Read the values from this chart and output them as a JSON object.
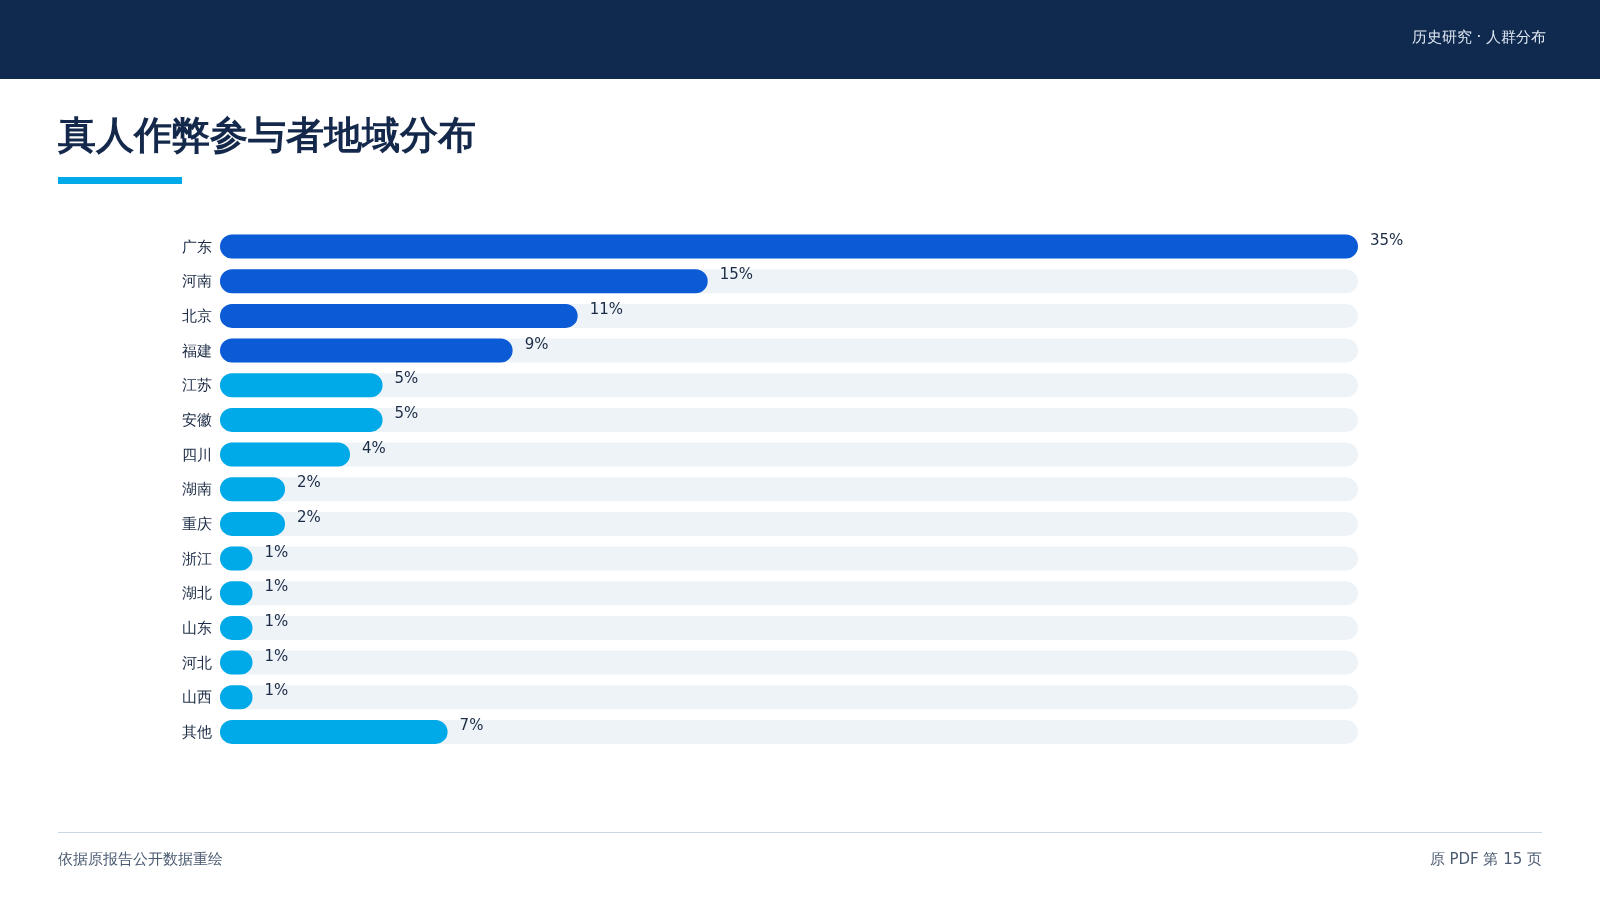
{
  "chart_data": {
    "type": "bar",
    "orientation": "horizontal",
    "title": "真人作弊参与者地域分布",
    "annotations": [
      "历史研究 · 人群分布",
      "依据原报告公开数据重绘",
      "原 PDF 第 15 页"
    ],
    "categories": [
      "广东",
      "河南",
      "北京",
      "福建",
      "江苏",
      "安徽",
      "四川",
      "湖南",
      "重庆",
      "浙江",
      "湖北",
      "山东",
      "河北",
      "山西",
      "其他"
    ],
    "values": [
      35,
      15,
      11,
      9,
      5,
      5,
      4,
      2,
      2,
      1,
      1,
      1,
      1,
      1,
      7
    ],
    "value_labels": [
      "35%",
      "15%",
      "11%",
      "9%",
      "5%",
      "5%",
      "4%",
      "2%",
      "2%",
      "1%",
      "1%",
      "1%",
      "1%",
      "1%",
      "7%"
    ],
    "colors": [
      "#0b5ad6",
      "#0b5ad6",
      "#0b5ad6",
      "#0b5ad6",
      "#00a9e8",
      "#00a9e8",
      "#00a9e8",
      "#00a9e8",
      "#00a9e8",
      "#00a9e8",
      "#00a9e8",
      "#00a9e8",
      "#00a9e8",
      "#00a9e8",
      "#00a9e8"
    ]
  }
}
